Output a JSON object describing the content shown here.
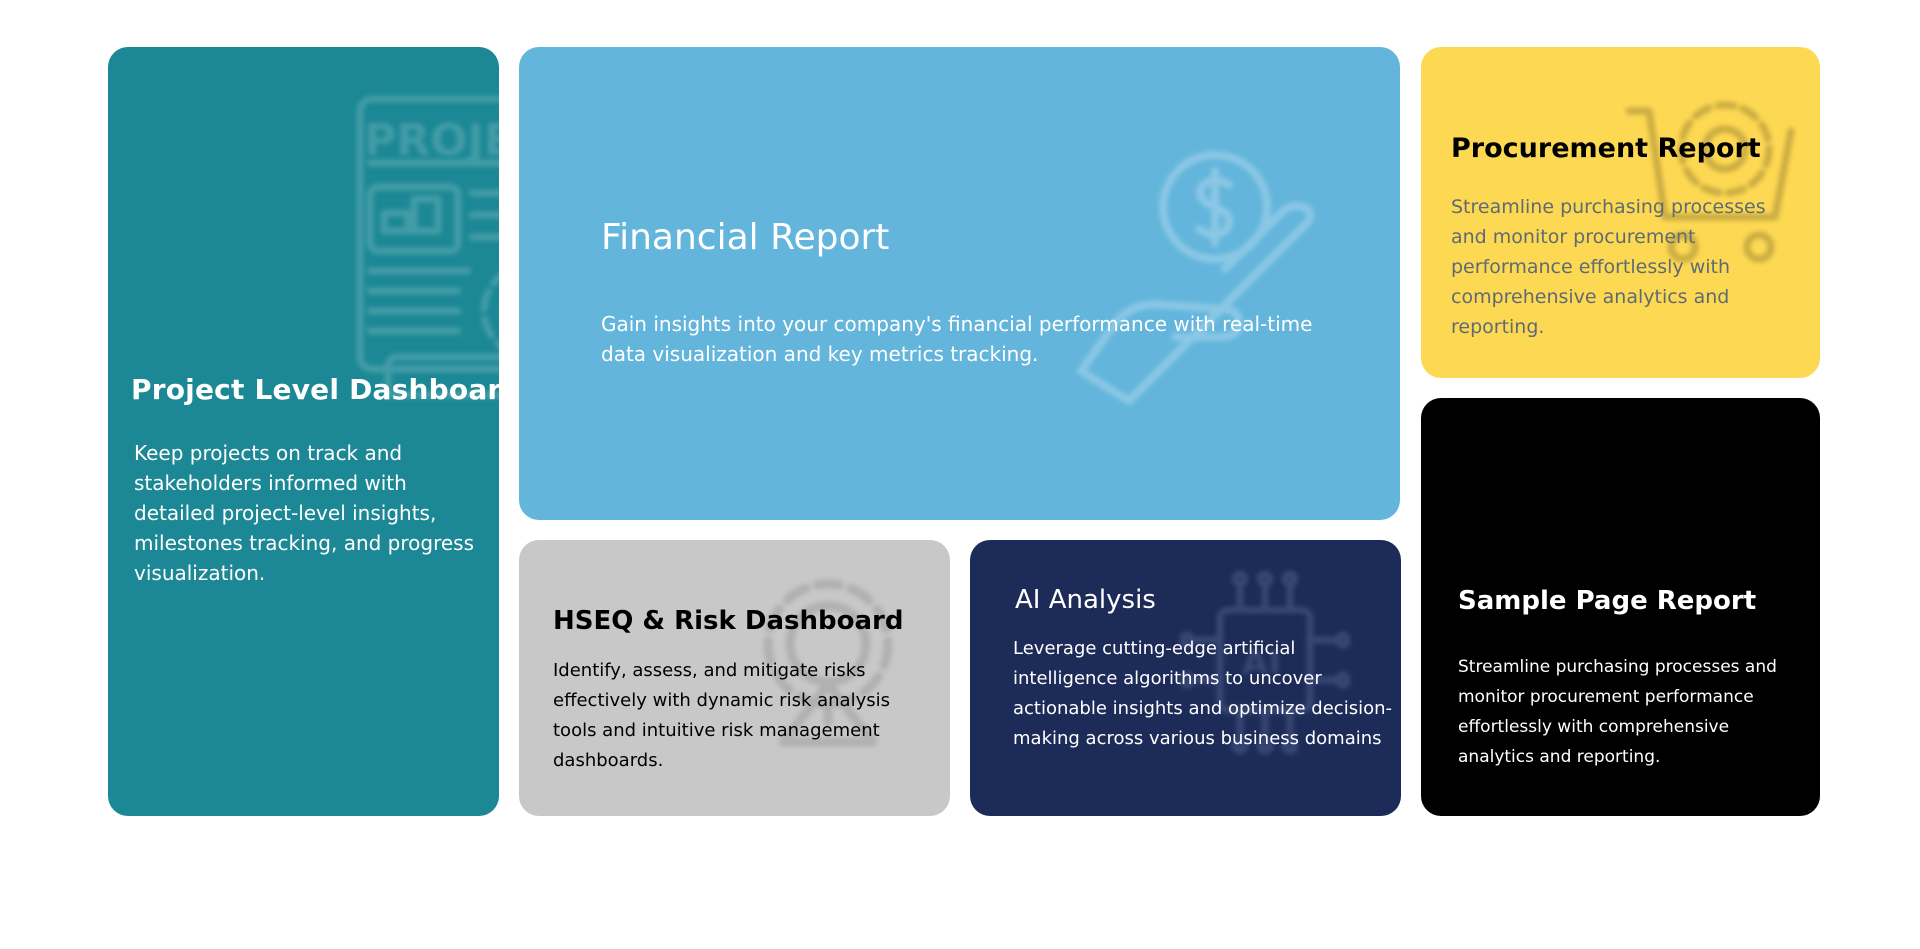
{
  "cards": {
    "project": {
      "title": "Project Level Dashboard",
      "description": "Keep projects on track and stakeholders informed with detailed project-level insights, milestones tracking, and progress visualization.",
      "icon": "project-document-icon",
      "icon_label": "PROJECT",
      "color": "#1c8895"
    },
    "financial": {
      "title": "Financial Report",
      "description": "Gain insights into your company's financial performance with real-time data visualization and key metrics tracking.",
      "icon": "dollar-hand-icon",
      "color": "#63b5dc"
    },
    "procurement": {
      "title": "Procurement Report",
      "description": "Streamline purchasing processes and monitor procurement performance effortlessly with comprehensive analytics and reporting.",
      "icon": "cart-gear-icon",
      "color": "#fdd853"
    },
    "hseq": {
      "title": "HSEQ & Risk Dashboard",
      "description": "Identify, assess, and mitigate risks effectively with dynamic risk analysis tools and intuitive risk management dashboards.",
      "icon": "gear-warning-icon",
      "color": "#c8c8c8"
    },
    "ai": {
      "title": "AI Analysis",
      "description": "Leverage cutting-edge artificial intelligence algorithms to uncover actionable insights and optimize decision-making across various business domains",
      "icon": "ai-chip-icon",
      "color": "#1d2b58"
    },
    "sample": {
      "title": "Sample Page Report",
      "description": "Streamline purchasing processes and monitor procurement performance effortlessly with comprehensive analytics and reporting.",
      "color": "#000000"
    }
  }
}
